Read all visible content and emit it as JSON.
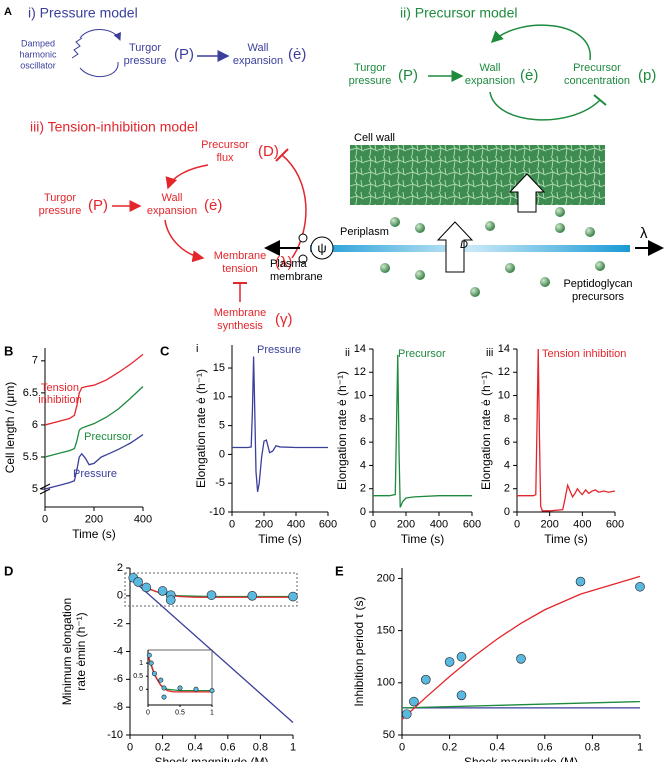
{
  "panel_labels": [
    "A",
    "B",
    "C",
    "D",
    "E"
  ],
  "diagram_a": {
    "pressure_model": {
      "title": "i) Pressure model",
      "oscillator": [
        "Damped",
        "harmonic",
        "oscillator"
      ],
      "pressure": [
        "Turgor",
        "pressure"
      ],
      "pressure_symbol": "(P)",
      "expansion": [
        "Wall",
        "expansion"
      ],
      "expansion_symbol": "(ė)"
    },
    "precursor_model": {
      "title": "ii) Precursor model",
      "pressure": [
        "Turgor",
        "pressure"
      ],
      "pressure_symbol": "(P)",
      "expansion": [
        "Wall",
        "expansion"
      ],
      "expansion_symbol": "(ė)",
      "precursor": [
        "Precursor",
        "concentration"
      ],
      "precursor_symbol": "(p)"
    },
    "tension_model": {
      "title": "iii) Tension-inhibition model",
      "flux": [
        "Precursor",
        "flux"
      ],
      "flux_symbol": "(D)",
      "pressure": [
        "Turgor",
        "pressure"
      ],
      "pressure_symbol": "(P)",
      "expansion": [
        "Wall",
        "expansion"
      ],
      "expansion_symbol": "(ė)",
      "tension": [
        "Membrane",
        "tension"
      ],
      "tension_symbol": "(λ)",
      "synthesis": [
        "Membrane",
        "synthesis"
      ],
      "synthesis_symbol": "(γ)"
    },
    "cell": {
      "wall": "Cell wall",
      "periplasm": "Periplasm",
      "membrane": [
        "Plasma",
        "membrane"
      ],
      "precursors": [
        "Peptidoglycan",
        "precursors"
      ],
      "flux": "D",
      "potential": "ψ",
      "tension": "λ"
    }
  },
  "chart_data": [
    {
      "type": "line",
      "panel": "B",
      "xlabel": "Time (s)",
      "ylabel": "Cell length / (μm)",
      "xlim": [
        0,
        400
      ],
      "xticks": [
        0,
        200,
        400
      ],
      "ylim": [
        4.72,
        7.2
      ],
      "yticks": [
        5,
        5.5,
        6,
        6.5,
        7
      ],
      "series": [
        {
          "name": "Tension inhibition",
          "color": "#e3262c",
          "x": [
            0,
            50,
            100,
            120,
            130,
            140,
            150,
            170,
            200,
            250,
            300,
            350,
            400
          ],
          "values": [
            6.0,
            6.05,
            6.1,
            6.15,
            6.3,
            6.5,
            6.58,
            6.6,
            6.62,
            6.7,
            6.82,
            6.95,
            7.1
          ]
        },
        {
          "name": "Precursor",
          "color": "#1d8a3e",
          "x": [
            0,
            50,
            100,
            120,
            130,
            140,
            150,
            170,
            200,
            250,
            300,
            350,
            400
          ],
          "values": [
            5.5,
            5.55,
            5.6,
            5.63,
            5.75,
            5.92,
            5.95,
            5.98,
            6.02,
            6.12,
            6.25,
            6.42,
            6.6
          ]
        },
        {
          "name": "Pressure",
          "color": "#3b3f9c",
          "x": [
            0,
            50,
            100,
            120,
            130,
            140,
            150,
            165,
            180,
            200,
            230,
            260,
            300,
            350,
            400
          ],
          "values": [
            5.0,
            5.05,
            5.1,
            5.13,
            5.3,
            5.5,
            5.55,
            5.48,
            5.38,
            5.4,
            5.5,
            5.55,
            5.62,
            5.72,
            5.85
          ]
        }
      ]
    },
    {
      "type": "line",
      "panel": "C",
      "subpanel": "i",
      "title": "Pressure",
      "title_color": "#3b3f9c",
      "xlabel": "Time (s)",
      "ylabel": "Elongation rate ė (h⁻¹)",
      "xlim": [
        0,
        600
      ],
      "xticks": [
        0,
        200,
        400,
        600
      ],
      "ylim": [
        -10,
        19
      ],
      "yticks": [
        -10,
        -5,
        0,
        5,
        10,
        15
      ],
      "series": [
        {
          "color": "#3b3f9c",
          "x": [
            0,
            100,
            120,
            128,
            135,
            142,
            150,
            160,
            170,
            185,
            200,
            215,
            235,
            255,
            275,
            300,
            400,
            600
          ],
          "values": [
            1.2,
            1.2,
            1.3,
            8,
            17,
            8,
            -3,
            -6.5,
            -5,
            -0.5,
            2.3,
            2.5,
            0.3,
            0.6,
            1.5,
            1.3,
            1.2,
            1.2
          ]
        }
      ]
    },
    {
      "type": "line",
      "panel": "C",
      "subpanel": "ii",
      "title": "Precursor",
      "title_color": "#1d8a3e",
      "xlabel": "Time (s)",
      "ylabel": "Elongation rate ė (h⁻¹)",
      "xlim": [
        0,
        600
      ],
      "xticks": [
        0,
        200,
        400,
        600
      ],
      "ylim": [
        0,
        14
      ],
      "yticks": [
        0,
        2,
        4,
        6,
        8,
        10,
        12,
        14
      ],
      "series": [
        {
          "color": "#1d8a3e",
          "x": [
            0,
            100,
            135,
            142,
            150,
            158,
            165,
            180,
            200,
            250,
            400,
            600
          ],
          "values": [
            1.4,
            1.4,
            1.5,
            7,
            13.5,
            5,
            0.4,
            0.9,
            1.2,
            1.3,
            1.4,
            1.4
          ]
        }
      ]
    },
    {
      "type": "line",
      "panel": "C",
      "subpanel": "iii",
      "title": "Tension inhibition",
      "title_color": "#e3262c",
      "xlabel": "Time (s)",
      "ylabel": "Elongation rate ė (h⁻¹)",
      "xlim": [
        0,
        600
      ],
      "xticks": [
        0,
        200,
        400,
        600
      ],
      "ylim": [
        0,
        14
      ],
      "yticks": [
        0,
        2,
        4,
        6,
        8,
        10,
        12,
        14
      ],
      "series": [
        {
          "color": "#e3262c",
          "x": [
            0,
            100,
            115,
            122,
            130,
            138,
            145,
            155,
            200,
            280,
            295,
            310,
            325,
            340,
            355,
            370,
            385,
            400,
            420,
            440,
            460,
            480,
            500,
            530,
            560,
            600
          ],
          "values": [
            1.4,
            1.4,
            1.5,
            7,
            14,
            6,
            0.5,
            0.1,
            0.1,
            0.2,
            1.2,
            2.3,
            1.8,
            1.3,
            1.6,
            2.0,
            1.7,
            1.5,
            1.9,
            1.6,
            1.8,
            1.9,
            1.7,
            1.8,
            1.7,
            1.8
          ]
        }
      ]
    },
    {
      "type": "line",
      "panel": "D",
      "xlabel": "Shock magnitude (M)",
      "ylabel": [
        "Minimum elongation",
        "rate ėmin (h⁻¹)"
      ],
      "xlim": [
        0,
        1
      ],
      "xticks": [
        0,
        0.2,
        0.4,
        0.6,
        0.8,
        1
      ],
      "ylim": [
        -10,
        2
      ],
      "yticks": [
        -10,
        -8,
        -6,
        -4,
        -2,
        0,
        2
      ],
      "series": [
        {
          "color": "#3b3f9c",
          "x": [
            0,
            1
          ],
          "values": [
            1.3,
            -9.1
          ]
        },
        {
          "color": "#1d8a3e",
          "x": [
            0,
            0.05,
            0.1,
            0.2,
            0.3,
            0.5,
            1
          ],
          "values": [
            1.3,
            0.9,
            0.55,
            0.15,
            0,
            -0.05,
            -0.05
          ]
        },
        {
          "color": "#e3262c",
          "x": [
            0,
            0.05,
            0.1,
            0.15,
            0.2,
            0.3,
            0.4,
            0.6,
            0.8,
            1
          ],
          "values": [
            1.3,
            0.95,
            0.6,
            0.35,
            0.15,
            -0.05,
            -0.1,
            -0.1,
            -0.1,
            -0.1
          ]
        },
        {
          "mode": "markers",
          "color": "#5bb8e0",
          "x": [
            0.02,
            0.05,
            0.1,
            0.2,
            0.25,
            0.25,
            0.5,
            0.75,
            1
          ],
          "values": [
            1.3,
            1.0,
            0.6,
            0.35,
            0.05,
            -0.3,
            0.05,
            0.0,
            -0.05
          ]
        }
      ]
    },
    {
      "type": "line",
      "xlim": [
        0,
        1
      ],
      "xticks": [
        0,
        0.5,
        1
      ],
      "ylim": [
        -0.6,
        1.5
      ],
      "yticks": [
        0,
        0.5,
        1
      ],
      "series": [
        {
          "color": "#1d8a3e",
          "x": [
            0,
            0.05,
            0.1,
            0.2,
            0.3,
            0.5,
            1
          ],
          "values": [
            1.3,
            0.9,
            0.55,
            0.15,
            0,
            -0.05,
            -0.05
          ]
        },
        {
          "color": "#e3262c",
          "x": [
            0,
            0.05,
            0.1,
            0.15,
            0.2,
            0.3,
            0.4,
            0.6,
            0.8,
            1
          ],
          "values": [
            1.3,
            0.95,
            0.6,
            0.35,
            0.15,
            -0.05,
            -0.1,
            -0.1,
            -0.1,
            -0.1
          ]
        },
        {
          "mode": "markers",
          "color": "#5bb8e0",
          "x": [
            0.02,
            0.05,
            0.1,
            0.2,
            0.25,
            0.25,
            0.5,
            0.75,
            1
          ],
          "values": [
            1.3,
            1.0,
            0.6,
            0.35,
            0.05,
            -0.3,
            0.05,
            0.0,
            -0.05
          ]
        }
      ]
    },
    {
      "type": "line",
      "panel": "E",
      "xlabel": "Shock magnitude (M)",
      "ylabel": "Inhibition period τ (s)",
      "xlim": [
        0,
        1
      ],
      "xticks": [
        0,
        0.2,
        0.4,
        0.6,
        0.8,
        1
      ],
      "ylim": [
        50,
        210
      ],
      "yticks": [
        50,
        100,
        150,
        200
      ],
      "series": [
        {
          "color": "#3b3f9c",
          "x": [
            0,
            1
          ],
          "values": [
            76,
            76
          ]
        },
        {
          "color": "#1d8a3e",
          "x": [
            0,
            1
          ],
          "values": [
            76,
            82
          ]
        },
        {
          "color": "#e3262c",
          "x": [
            0,
            0.1,
            0.2,
            0.3,
            0.4,
            0.5,
            0.6,
            0.75,
            1
          ],
          "values": [
            65,
            86,
            106,
            125,
            142,
            157,
            170,
            185,
            202
          ]
        },
        {
          "mode": "markers",
          "color": "#5bb8e0",
          "x": [
            0.02,
            0.05,
            0.1,
            0.2,
            0.25,
            0.25,
            0.5,
            0.75,
            1
          ],
          "values": [
            70,
            82,
            103,
            120,
            125,
            88,
            123,
            197,
            192
          ]
        }
      ]
    }
  ]
}
